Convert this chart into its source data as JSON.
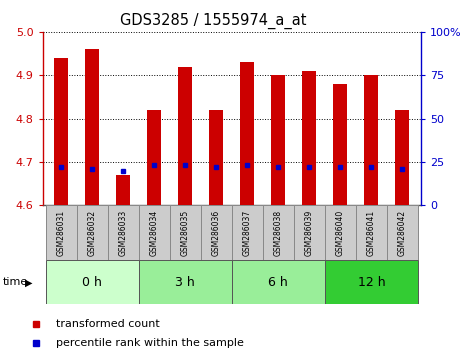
{
  "title": "GDS3285 / 1555974_a_at",
  "samples": [
    "GSM286031",
    "GSM286032",
    "GSM286033",
    "GSM286034",
    "GSM286035",
    "GSM286036",
    "GSM286037",
    "GSM286038",
    "GSM286039",
    "GSM286040",
    "GSM286041",
    "GSM286042"
  ],
  "transformed_counts": [
    4.94,
    4.96,
    4.67,
    4.82,
    4.92,
    4.82,
    4.93,
    4.9,
    4.91,
    4.88,
    4.9,
    4.82
  ],
  "percentile_ranks": [
    22,
    21,
    20,
    23,
    23,
    22,
    23,
    22,
    22,
    22,
    22,
    21
  ],
  "ylim_left": [
    4.6,
    5.0
  ],
  "ylim_right": [
    0,
    100
  ],
  "yticks_left": [
    4.6,
    4.7,
    4.8,
    4.9,
    5.0
  ],
  "yticks_right": [
    0,
    25,
    50,
    75,
    100
  ],
  "time_groups": [
    {
      "label": "0 h",
      "start": 0,
      "end": 3,
      "color": "#ccffcc"
    },
    {
      "label": "3 h",
      "start": 3,
      "end": 6,
      "color": "#99ee99"
    },
    {
      "label": "6 h",
      "start": 6,
      "end": 9,
      "color": "#99ee99"
    },
    {
      "label": "12 h",
      "start": 9,
      "end": 12,
      "color": "#33cc33"
    }
  ],
  "bar_color": "#cc0000",
  "percentile_color": "#0000cc",
  "bar_width": 0.45,
  "baseline": 4.6,
  "grid_color": "#000000",
  "sample_box_color": "#cccccc",
  "sample_box_edge": "#888888",
  "time_border_color": "#555555",
  "ylabel_left_color": "#cc0000",
  "ylabel_right_color": "#0000cc",
  "time_label": "time",
  "legend_transformed": "transformed count",
  "legend_percentile": "percentile rank within the sample"
}
